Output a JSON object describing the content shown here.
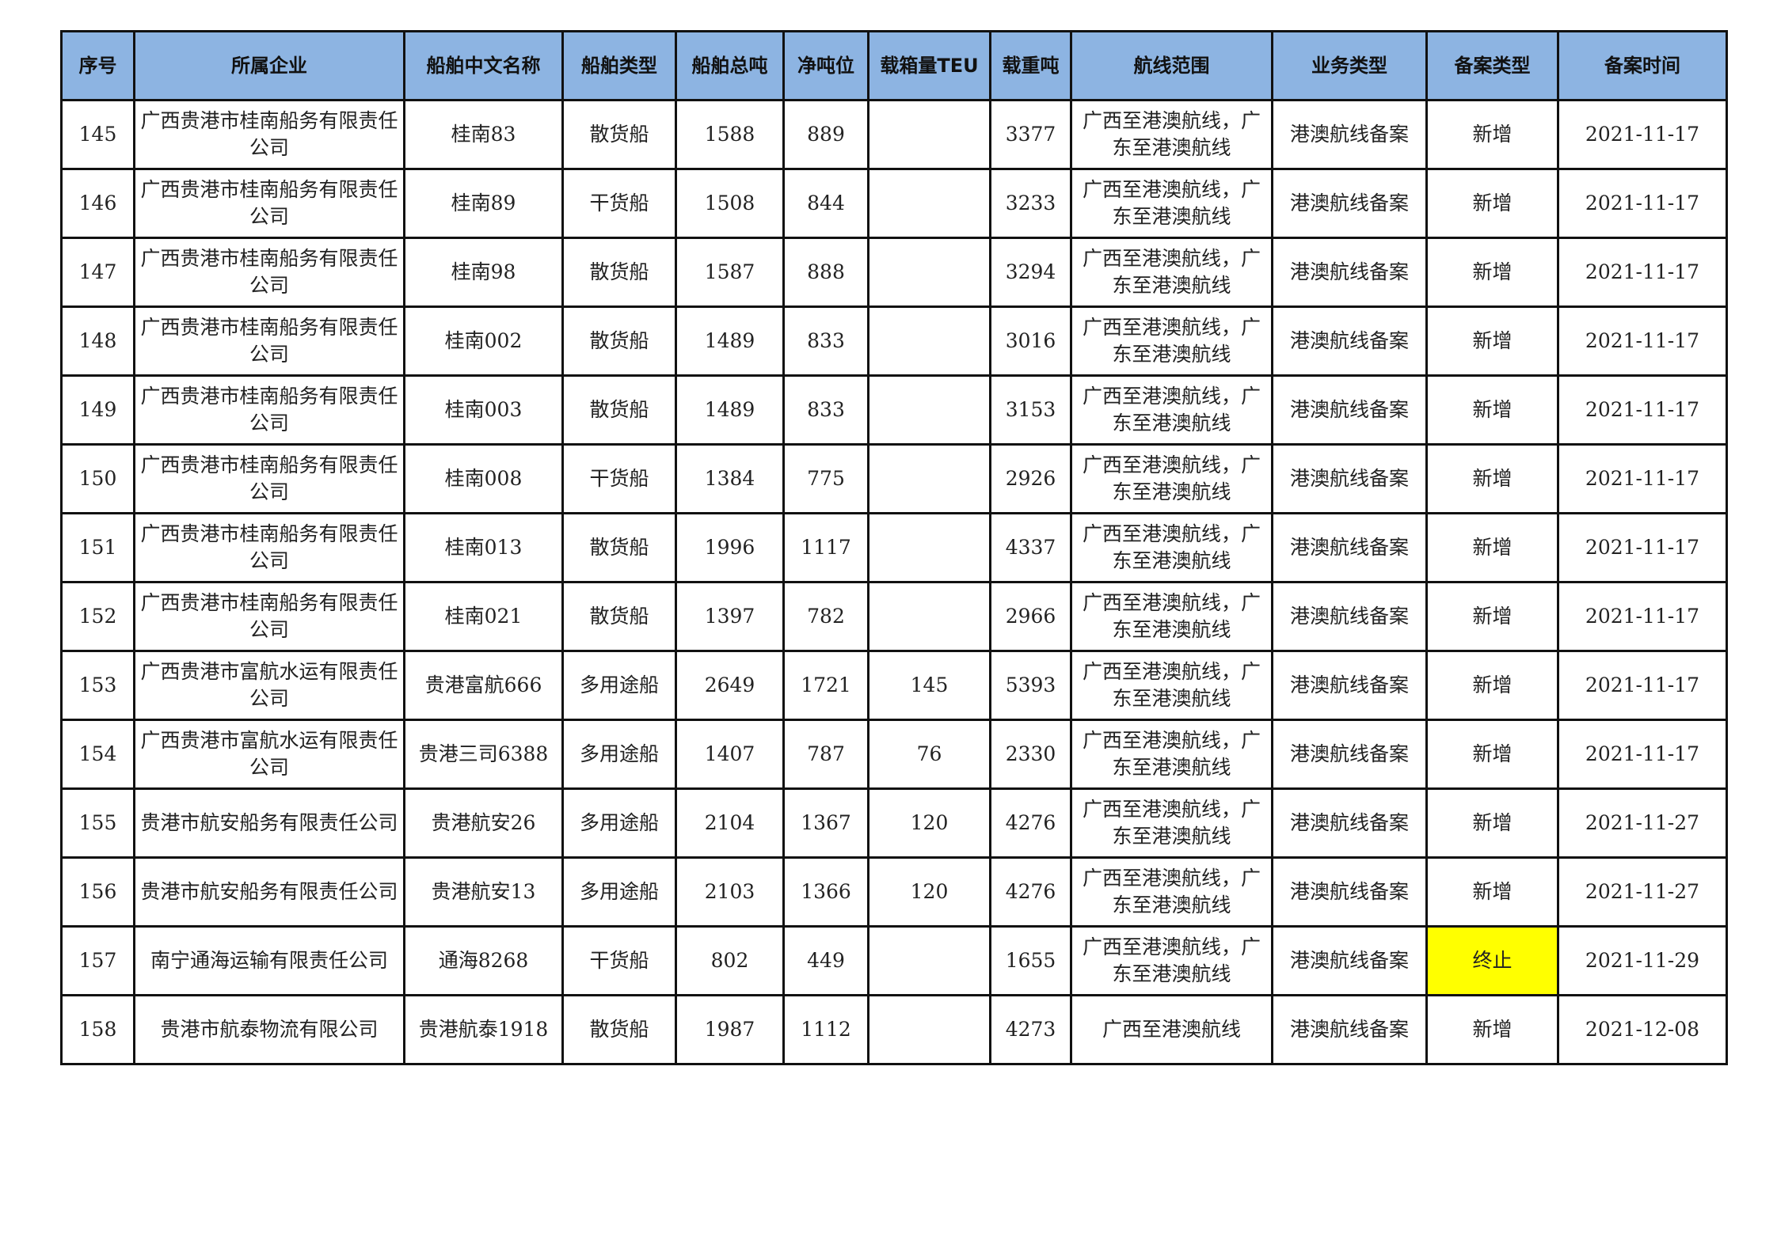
{
  "columns": [
    "序号",
    "所属企业",
    "船舶中文名称",
    "船舶类型",
    "船舶总吨",
    "净吨位",
    "载箱量TEU",
    "载重吨",
    "航线范围",
    "业务类型",
    "备案类型",
    "备案时间"
  ],
  "highlight_color": "#FFFF00",
  "header_color": "#8DB4E2",
  "rows": [
    [
      "145",
      "广西贵港市桂南船务有限责任公司",
      "桂南83",
      "散货船",
      "1588",
      "889",
      "",
      "3377",
      "广西至港澳航线，广东至港澳航线",
      "港澳航线备案",
      "新增",
      "2021-11-17"
    ],
    [
      "146",
      "广西贵港市桂南船务有限责任公司",
      "桂南89",
      "干货船",
      "1508",
      "844",
      "",
      "3233",
      "广西至港澳航线，广东至港澳航线",
      "港澳航线备案",
      "新增",
      "2021-11-17"
    ],
    [
      "147",
      "广西贵港市桂南船务有限责任公司",
      "桂南98",
      "散货船",
      "1587",
      "888",
      "",
      "3294",
      "广西至港澳航线，广东至港澳航线",
      "港澳航线备案",
      "新增",
      "2021-11-17"
    ],
    [
      "148",
      "广西贵港市桂南船务有限责任公司",
      "桂南002",
      "散货船",
      "1489",
      "833",
      "",
      "3016",
      "广西至港澳航线，广东至港澳航线",
      "港澳航线备案",
      "新增",
      "2021-11-17"
    ],
    [
      "149",
      "广西贵港市桂南船务有限责任公司",
      "桂南003",
      "散货船",
      "1489",
      "833",
      "",
      "3153",
      "广西至港澳航线，广东至港澳航线",
      "港澳航线备案",
      "新增",
      "2021-11-17"
    ],
    [
      "150",
      "广西贵港市桂南船务有限责任公司",
      "桂南008",
      "干货船",
      "1384",
      "775",
      "",
      "2926",
      "广西至港澳航线，广东至港澳航线",
      "港澳航线备案",
      "新增",
      "2021-11-17"
    ],
    [
      "151",
      "广西贵港市桂南船务有限责任公司",
      "桂南013",
      "散货船",
      "1996",
      "1117",
      "",
      "4337",
      "广西至港澳航线，广东至港澳航线",
      "港澳航线备案",
      "新增",
      "2021-11-17"
    ],
    [
      "152",
      "广西贵港市桂南船务有限责任公司",
      "桂南021",
      "散货船",
      "1397",
      "782",
      "",
      "2966",
      "广西至港澳航线，广东至港澳航线",
      "港澳航线备案",
      "新增",
      "2021-11-17"
    ],
    [
      "153",
      "广西贵港市富航水运有限责任公司",
      "贵港富航666",
      "多用途船",
      "2649",
      "1721",
      "145",
      "5393",
      "广西至港澳航线，广东至港澳航线",
      "港澳航线备案",
      "新增",
      "2021-11-17"
    ],
    [
      "154",
      "广西贵港市富航水运有限责任公司",
      "贵港三司6388",
      "多用途船",
      "1407",
      "787",
      "76",
      "2330",
      "广西至港澳航线，广东至港澳航线",
      "港澳航线备案",
      "新增",
      "2021-11-17"
    ],
    [
      "155",
      "贵港市航安船务有限责任公司",
      "贵港航安26",
      "多用途船",
      "2104",
      "1367",
      "120",
      "4276",
      "广西至港澳航线，广东至港澳航线",
      "港澳航线备案",
      "新增",
      "2021-11-27"
    ],
    [
      "156",
      "贵港市航安船务有限责任公司",
      "贵港航安13",
      "多用途船",
      "2103",
      "1366",
      "120",
      "4276",
      "广西至港澳航线，广东至港澳航线",
      "港澳航线备案",
      "新增",
      "2021-11-27"
    ],
    [
      "157",
      "南宁通海运输有限责任公司",
      "通海8268",
      "干货船",
      "802",
      "449",
      "",
      "1655",
      "广西至港澳航线，广东至港澳航线",
      "港澳航线备案",
      "终止",
      "2021-11-29"
    ],
    [
      "158",
      "贵港市航泰物流有限公司",
      "贵港航泰1918",
      "散货船",
      "1987",
      "1112",
      "",
      "4273",
      "广西至港澳航线",
      "港澳航线备案",
      "新增",
      "2021-12-08"
    ]
  ],
  "highlighted_cells": [
    {
      "row": 12,
      "col": 10
    }
  ]
}
